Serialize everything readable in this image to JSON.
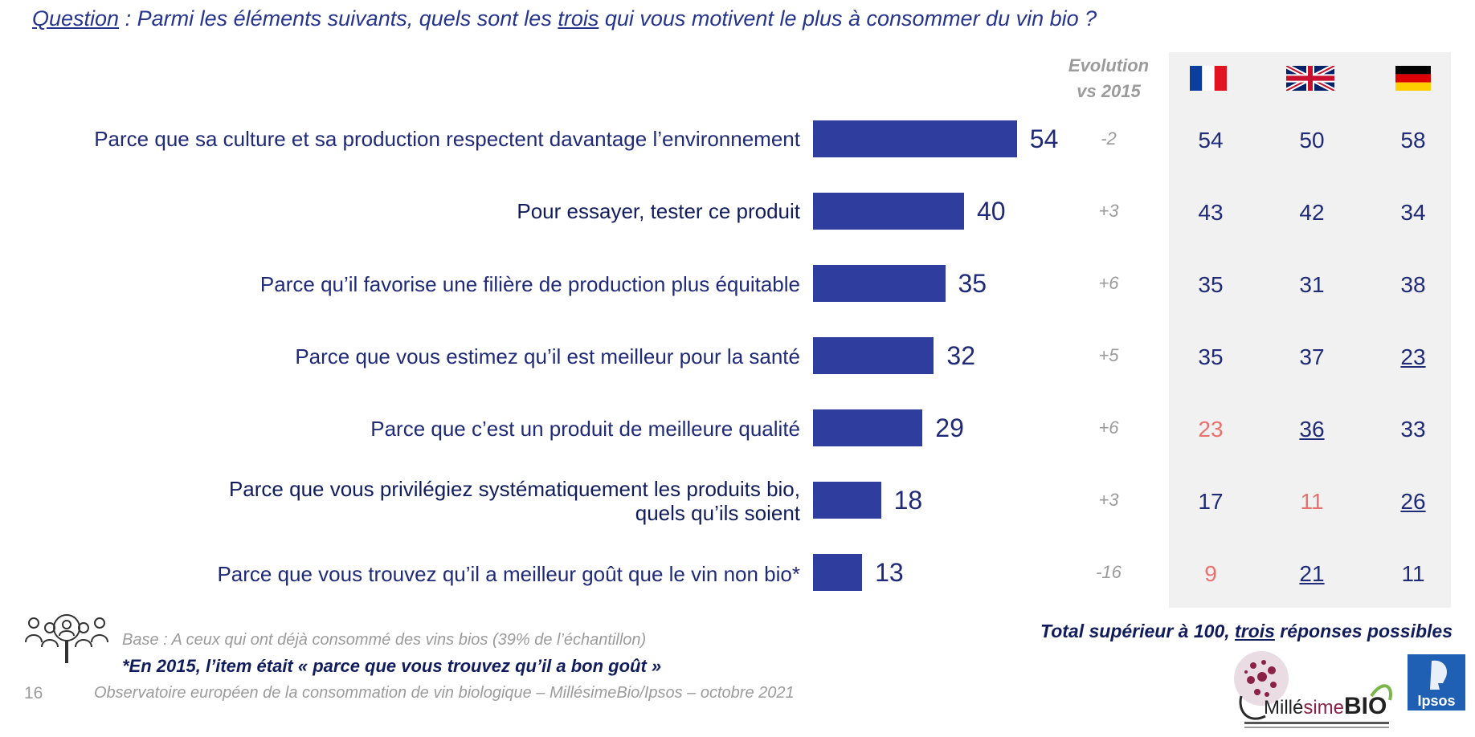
{
  "question": {
    "label": "Question",
    "text_before": " : Parmi les éléments suivants, quels sont les ",
    "highlight": "trois",
    "text_after": " qui vous motivent le plus à consommer du vin bio ?"
  },
  "evolution_header": {
    "line1": "Evolution",
    "line2": "vs 2015"
  },
  "countries": [
    {
      "code": "FR",
      "icon": "france-flag-icon"
    },
    {
      "code": "UK",
      "icon": "uk-flag-icon"
    },
    {
      "code": "DE",
      "icon": "germany-flag-icon"
    }
  ],
  "colors": {
    "bar": "#2f3e9e",
    "text": "#1f2a78",
    "low_value": "#e8726e",
    "muted": "#9b9b9b",
    "panel": "#f1f1f1"
  },
  "chart_data": {
    "type": "bar",
    "orientation": "horizontal",
    "categories": [
      "Parce que sa culture et sa production respectent davantage l’environnement",
      "Pour essayer, tester ce produit",
      "Parce qu’il favorise une filière de production plus équitable",
      "Parce que vous estimez qu’il est meilleur pour la santé",
      "Parce que c’est un produit de meilleure qualité",
      "Parce que vous privilégiez systématiquement les produits bio, quels qu’ils soient",
      "Parce que vous trouvez qu’il a meilleur goût que le vin non bio*"
    ],
    "values": [
      54,
      40,
      35,
      32,
      29,
      18,
      13
    ],
    "evolution_vs_2015": [
      "-2",
      "+3",
      "+6",
      "+5",
      "+6",
      "+3",
      "-16"
    ],
    "by_country": {
      "FR": [
        54,
        43,
        35,
        35,
        23,
        17,
        9
      ],
      "UK": [
        50,
        42,
        31,
        37,
        36,
        11,
        21
      ],
      "DE": [
        58,
        34,
        38,
        23,
        33,
        26,
        11
      ]
    },
    "highlight_low": {
      "FR": [
        4,
        6
      ],
      "UK": [
        5
      ]
    },
    "highlight_high": {
      "UK": [
        4,
        6
      ],
      "DE": [
        3,
        5
      ]
    }
  },
  "labels": {
    "row0": "Parce que sa culture et sa production respectent davantage l’environnement",
    "row1": "Pour essayer, tester ce produit",
    "row2": "Parce qu’il favorise une filière de production plus équitable",
    "row3": "Parce que vous estimez qu’il est meilleur pour la santé",
    "row4": "Parce que c’est un produit de meilleure qualité",
    "row5_line1": "Parce que vous privilégiez systématiquement les produits bio,",
    "row5_line2": "quels qu’ils soient",
    "row6": "Parce que vous trouvez qu’il a meilleur goût que le vin non bio*"
  },
  "total_note": {
    "before": "Total supérieur à 100, ",
    "highlight": "trois",
    "after": " réponses possibles"
  },
  "base": "Base : A ceux qui ont déjà consommé des vins bios (39% de l’échantillon)",
  "footnote": "*En 2015, l’item était  « parce que vous trouvez qu’il a bon goût »",
  "page_number": "16",
  "source": "Observatoire européen de la consommation de vin biologique – MillésimeBio/Ipsos – octobre 2021",
  "logos": {
    "millesime_part1": "Millé",
    "millesime_part2": "sime",
    "millesime_part3": "BIO",
    "ipsos": "Ipsos"
  }
}
